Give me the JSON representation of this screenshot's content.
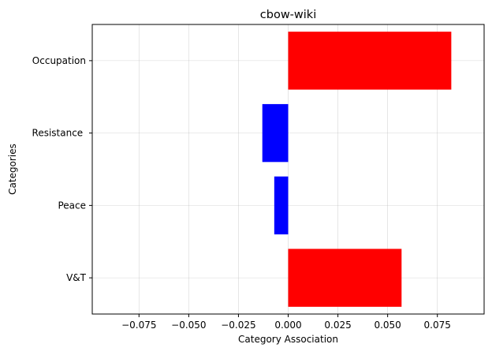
{
  "chart_data": {
    "type": "bar",
    "orientation": "horizontal",
    "title": "cbow-wiki",
    "xlabel": "Category Association",
    "ylabel": "Categories",
    "categories": [
      "Occupation",
      "Resistance ",
      "Peace",
      "V&T"
    ],
    "values": [
      0.082,
      -0.013,
      -0.007,
      0.057
    ],
    "bar_colors": [
      "#ff0000",
      "#0000ff",
      "#0000ff",
      "#ff0000"
    ],
    "xlim": [
      -0.0985,
      0.0985
    ],
    "xticks": [
      -0.075,
      -0.05,
      -0.025,
      0.0,
      0.025,
      0.05,
      0.075
    ],
    "xtick_labels": [
      "−0.075",
      "−0.050",
      "−0.025",
      "0.000",
      "0.025",
      "0.050",
      "0.075"
    ],
    "grid": true
  }
}
